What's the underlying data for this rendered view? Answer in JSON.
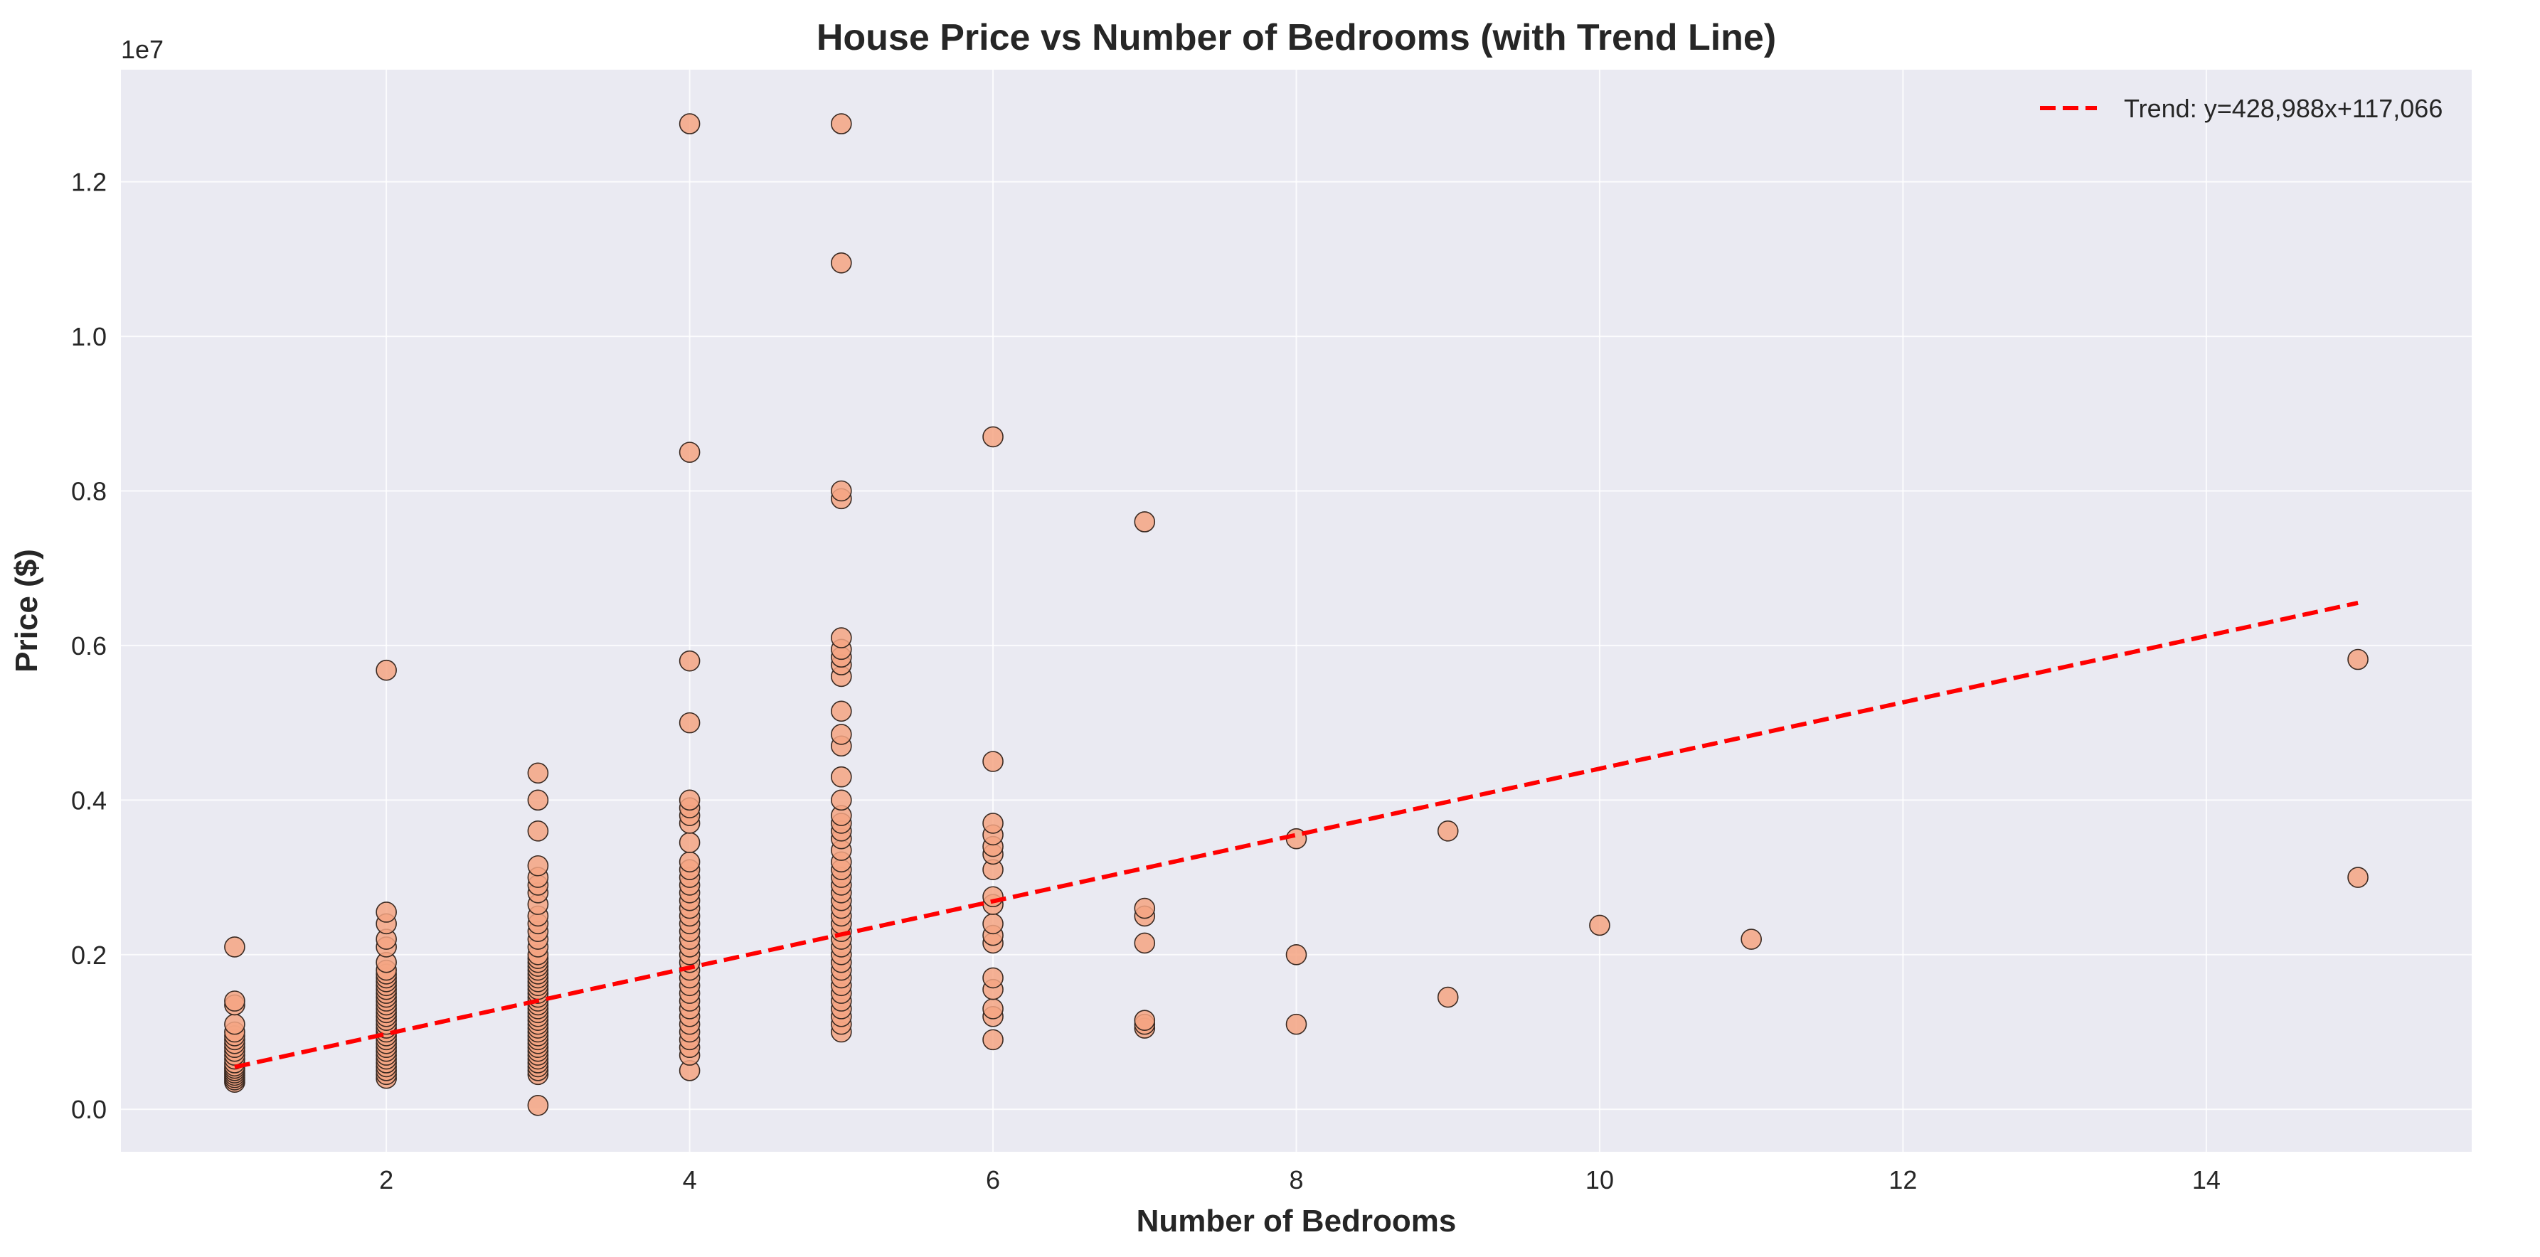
{
  "chart_data": {
    "type": "scatter",
    "title": "House Price vs Number of Bedrooms (with Trend Line)",
    "xlabel": "Number of Bedrooms",
    "ylabel": "Price ($)",
    "y_scale_label": "1e7",
    "xlim": [
      0.25,
      15.75
    ],
    "ylim": [
      -550000,
      13450000
    ],
    "x_ticks": [
      2,
      4,
      6,
      8,
      10,
      12,
      14
    ],
    "x_tick_labels": [
      "2",
      "4",
      "6",
      "8",
      "10",
      "12",
      "14"
    ],
    "y_ticks": [
      0,
      2000000,
      4000000,
      6000000,
      8000000,
      10000000,
      12000000
    ],
    "y_tick_labels": [
      "0.0",
      "0.2",
      "0.4",
      "0.6",
      "0.8",
      "1.0",
      "1.2"
    ],
    "grid": true,
    "background": "#eaeaf2",
    "point_color": "#f4a582",
    "point_edge_color": "#3a2a22",
    "trend_color": "#ff0000",
    "legend": {
      "position": "top-right",
      "label": "Trend: y=428,988x+117,066"
    },
    "trend": {
      "slope": 428988,
      "intercept": 117066,
      "x_range": [
        1,
        15
      ]
    },
    "points": [
      {
        "x": 1,
        "y": 350000
      },
      {
        "x": 1,
        "y": 380000
      },
      {
        "x": 1,
        "y": 410000
      },
      {
        "x": 1,
        "y": 440000
      },
      {
        "x": 1,
        "y": 470000
      },
      {
        "x": 1,
        "y": 500000
      },
      {
        "x": 1,
        "y": 530000
      },
      {
        "x": 1,
        "y": 560000
      },
      {
        "x": 1,
        "y": 600000
      },
      {
        "x": 1,
        "y": 650000
      },
      {
        "x": 1,
        "y": 700000
      },
      {
        "x": 1,
        "y": 750000
      },
      {
        "x": 1,
        "y": 800000
      },
      {
        "x": 1,
        "y": 850000
      },
      {
        "x": 1,
        "y": 900000
      },
      {
        "x": 1,
        "y": 950000
      },
      {
        "x": 1,
        "y": 1000000
      },
      {
        "x": 1,
        "y": 1100000
      },
      {
        "x": 1,
        "y": 1350000
      },
      {
        "x": 1,
        "y": 1400000
      },
      {
        "x": 1,
        "y": 2100000
      },
      {
        "x": 2,
        "y": 400000
      },
      {
        "x": 2,
        "y": 450000
      },
      {
        "x": 2,
        "y": 500000
      },
      {
        "x": 2,
        "y": 550000
      },
      {
        "x": 2,
        "y": 600000
      },
      {
        "x": 2,
        "y": 650000
      },
      {
        "x": 2,
        "y": 700000
      },
      {
        "x": 2,
        "y": 750000
      },
      {
        "x": 2,
        "y": 800000
      },
      {
        "x": 2,
        "y": 850000
      },
      {
        "x": 2,
        "y": 900000
      },
      {
        "x": 2,
        "y": 950000
      },
      {
        "x": 2,
        "y": 1000000
      },
      {
        "x": 2,
        "y": 1050000
      },
      {
        "x": 2,
        "y": 1100000
      },
      {
        "x": 2,
        "y": 1150000
      },
      {
        "x": 2,
        "y": 1200000
      },
      {
        "x": 2,
        "y": 1250000
      },
      {
        "x": 2,
        "y": 1300000
      },
      {
        "x": 2,
        "y": 1350000
      },
      {
        "x": 2,
        "y": 1400000
      },
      {
        "x": 2,
        "y": 1450000
      },
      {
        "x": 2,
        "y": 1500000
      },
      {
        "x": 2,
        "y": 1550000
      },
      {
        "x": 2,
        "y": 1600000
      },
      {
        "x": 2,
        "y": 1650000
      },
      {
        "x": 2,
        "y": 1700000
      },
      {
        "x": 2,
        "y": 1750000
      },
      {
        "x": 2,
        "y": 1800000
      },
      {
        "x": 2,
        "y": 1900000
      },
      {
        "x": 2,
        "y": 2100000
      },
      {
        "x": 2,
        "y": 2200000
      },
      {
        "x": 2,
        "y": 2400000
      },
      {
        "x": 2,
        "y": 2550000
      },
      {
        "x": 2,
        "y": 5680000
      },
      {
        "x": 3,
        "y": 50000
      },
      {
        "x": 3,
        "y": 450000
      },
      {
        "x": 3,
        "y": 500000
      },
      {
        "x": 3,
        "y": 550000
      },
      {
        "x": 3,
        "y": 600000
      },
      {
        "x": 3,
        "y": 650000
      },
      {
        "x": 3,
        "y": 700000
      },
      {
        "x": 3,
        "y": 750000
      },
      {
        "x": 3,
        "y": 800000
      },
      {
        "x": 3,
        "y": 850000
      },
      {
        "x": 3,
        "y": 900000
      },
      {
        "x": 3,
        "y": 950000
      },
      {
        "x": 3,
        "y": 1000000
      },
      {
        "x": 3,
        "y": 1050000
      },
      {
        "x": 3,
        "y": 1100000
      },
      {
        "x": 3,
        "y": 1150000
      },
      {
        "x": 3,
        "y": 1200000
      },
      {
        "x": 3,
        "y": 1250000
      },
      {
        "x": 3,
        "y": 1300000
      },
      {
        "x": 3,
        "y": 1350000
      },
      {
        "x": 3,
        "y": 1400000
      },
      {
        "x": 3,
        "y": 1450000
      },
      {
        "x": 3,
        "y": 1500000
      },
      {
        "x": 3,
        "y": 1550000
      },
      {
        "x": 3,
        "y": 1600000
      },
      {
        "x": 3,
        "y": 1650000
      },
      {
        "x": 3,
        "y": 1700000
      },
      {
        "x": 3,
        "y": 1750000
      },
      {
        "x": 3,
        "y": 1800000
      },
      {
        "x": 3,
        "y": 1850000
      },
      {
        "x": 3,
        "y": 1900000
      },
      {
        "x": 3,
        "y": 1950000
      },
      {
        "x": 3,
        "y": 2000000
      },
      {
        "x": 3,
        "y": 2100000
      },
      {
        "x": 3,
        "y": 2200000
      },
      {
        "x": 3,
        "y": 2300000
      },
      {
        "x": 3,
        "y": 2400000
      },
      {
        "x": 3,
        "y": 2500000
      },
      {
        "x": 3,
        "y": 2650000
      },
      {
        "x": 3,
        "y": 2800000
      },
      {
        "x": 3,
        "y": 2900000
      },
      {
        "x": 3,
        "y": 3000000
      },
      {
        "x": 3,
        "y": 3150000
      },
      {
        "x": 3,
        "y": 3600000
      },
      {
        "x": 3,
        "y": 4000000
      },
      {
        "x": 3,
        "y": 4350000
      },
      {
        "x": 4,
        "y": 500000
      },
      {
        "x": 4,
        "y": 700000
      },
      {
        "x": 4,
        "y": 800000
      },
      {
        "x": 4,
        "y": 900000
      },
      {
        "x": 4,
        "y": 1000000
      },
      {
        "x": 4,
        "y": 1100000
      },
      {
        "x": 4,
        "y": 1200000
      },
      {
        "x": 4,
        "y": 1300000
      },
      {
        "x": 4,
        "y": 1400000
      },
      {
        "x": 4,
        "y": 1500000
      },
      {
        "x": 4,
        "y": 1600000
      },
      {
        "x": 4,
        "y": 1700000
      },
      {
        "x": 4,
        "y": 1800000
      },
      {
        "x": 4,
        "y": 1900000
      },
      {
        "x": 4,
        "y": 2000000
      },
      {
        "x": 4,
        "y": 2100000
      },
      {
        "x": 4,
        "y": 2200000
      },
      {
        "x": 4,
        "y": 2300000
      },
      {
        "x": 4,
        "y": 2400000
      },
      {
        "x": 4,
        "y": 2500000
      },
      {
        "x": 4,
        "y": 2600000
      },
      {
        "x": 4,
        "y": 2700000
      },
      {
        "x": 4,
        "y": 2800000
      },
      {
        "x": 4,
        "y": 2900000
      },
      {
        "x": 4,
        "y": 3000000
      },
      {
        "x": 4,
        "y": 3100000
      },
      {
        "x": 4,
        "y": 3200000
      },
      {
        "x": 4,
        "y": 3450000
      },
      {
        "x": 4,
        "y": 3700000
      },
      {
        "x": 4,
        "y": 3800000
      },
      {
        "x": 4,
        "y": 3900000
      },
      {
        "x": 4,
        "y": 4000000
      },
      {
        "x": 4,
        "y": 5000000
      },
      {
        "x": 4,
        "y": 5800000
      },
      {
        "x": 4,
        "y": 8500000
      },
      {
        "x": 4,
        "y": 12750000
      },
      {
        "x": 5,
        "y": 1000000
      },
      {
        "x": 5,
        "y": 1100000
      },
      {
        "x": 5,
        "y": 1200000
      },
      {
        "x": 5,
        "y": 1300000
      },
      {
        "x": 5,
        "y": 1400000
      },
      {
        "x": 5,
        "y": 1500000
      },
      {
        "x": 5,
        "y": 1600000
      },
      {
        "x": 5,
        "y": 1700000
      },
      {
        "x": 5,
        "y": 1800000
      },
      {
        "x": 5,
        "y": 1900000
      },
      {
        "x": 5,
        "y": 2000000
      },
      {
        "x": 5,
        "y": 2100000
      },
      {
        "x": 5,
        "y": 2200000
      },
      {
        "x": 5,
        "y": 2300000
      },
      {
        "x": 5,
        "y": 2400000
      },
      {
        "x": 5,
        "y": 2500000
      },
      {
        "x": 5,
        "y": 2600000
      },
      {
        "x": 5,
        "y": 2700000
      },
      {
        "x": 5,
        "y": 2800000
      },
      {
        "x": 5,
        "y": 2900000
      },
      {
        "x": 5,
        "y": 3000000
      },
      {
        "x": 5,
        "y": 3100000
      },
      {
        "x": 5,
        "y": 3200000
      },
      {
        "x": 5,
        "y": 3350000
      },
      {
        "x": 5,
        "y": 3500000
      },
      {
        "x": 5,
        "y": 3600000
      },
      {
        "x": 5,
        "y": 3700000
      },
      {
        "x": 5,
        "y": 3800000
      },
      {
        "x": 5,
        "y": 4000000
      },
      {
        "x": 5,
        "y": 4300000
      },
      {
        "x": 5,
        "y": 4700000
      },
      {
        "x": 5,
        "y": 4850000
      },
      {
        "x": 5,
        "y": 5150000
      },
      {
        "x": 5,
        "y": 5600000
      },
      {
        "x": 5,
        "y": 5750000
      },
      {
        "x": 5,
        "y": 5850000
      },
      {
        "x": 5,
        "y": 5950000
      },
      {
        "x": 5,
        "y": 6100000
      },
      {
        "x": 5,
        "y": 7900000
      },
      {
        "x": 5,
        "y": 8000000
      },
      {
        "x": 5,
        "y": 10950000
      },
      {
        "x": 5,
        "y": 12750000
      },
      {
        "x": 6,
        "y": 900000
      },
      {
        "x": 6,
        "y": 1200000
      },
      {
        "x": 6,
        "y": 1300000
      },
      {
        "x": 6,
        "y": 1550000
      },
      {
        "x": 6,
        "y": 1700000
      },
      {
        "x": 6,
        "y": 2150000
      },
      {
        "x": 6,
        "y": 2250000
      },
      {
        "x": 6,
        "y": 2400000
      },
      {
        "x": 6,
        "y": 2650000
      },
      {
        "x": 6,
        "y": 2750000
      },
      {
        "x": 6,
        "y": 3100000
      },
      {
        "x": 6,
        "y": 3300000
      },
      {
        "x": 6,
        "y": 3400000
      },
      {
        "x": 6,
        "y": 3550000
      },
      {
        "x": 6,
        "y": 3700000
      },
      {
        "x": 6,
        "y": 4500000
      },
      {
        "x": 6,
        "y": 8700000
      },
      {
        "x": 7,
        "y": 1050000
      },
      {
        "x": 7,
        "y": 1100000
      },
      {
        "x": 7,
        "y": 1150000
      },
      {
        "x": 7,
        "y": 2150000
      },
      {
        "x": 7,
        "y": 2500000
      },
      {
        "x": 7,
        "y": 2600000
      },
      {
        "x": 7,
        "y": 7600000
      },
      {
        "x": 8,
        "y": 1100000
      },
      {
        "x": 8,
        "y": 2000000
      },
      {
        "x": 8,
        "y": 3500000
      },
      {
        "x": 9,
        "y": 1450000
      },
      {
        "x": 9,
        "y": 3600000
      },
      {
        "x": 10,
        "y": 2380000
      },
      {
        "x": 11,
        "y": 2200000
      },
      {
        "x": 15,
        "y": 3000000
      },
      {
        "x": 15,
        "y": 5820000
      }
    ]
  }
}
